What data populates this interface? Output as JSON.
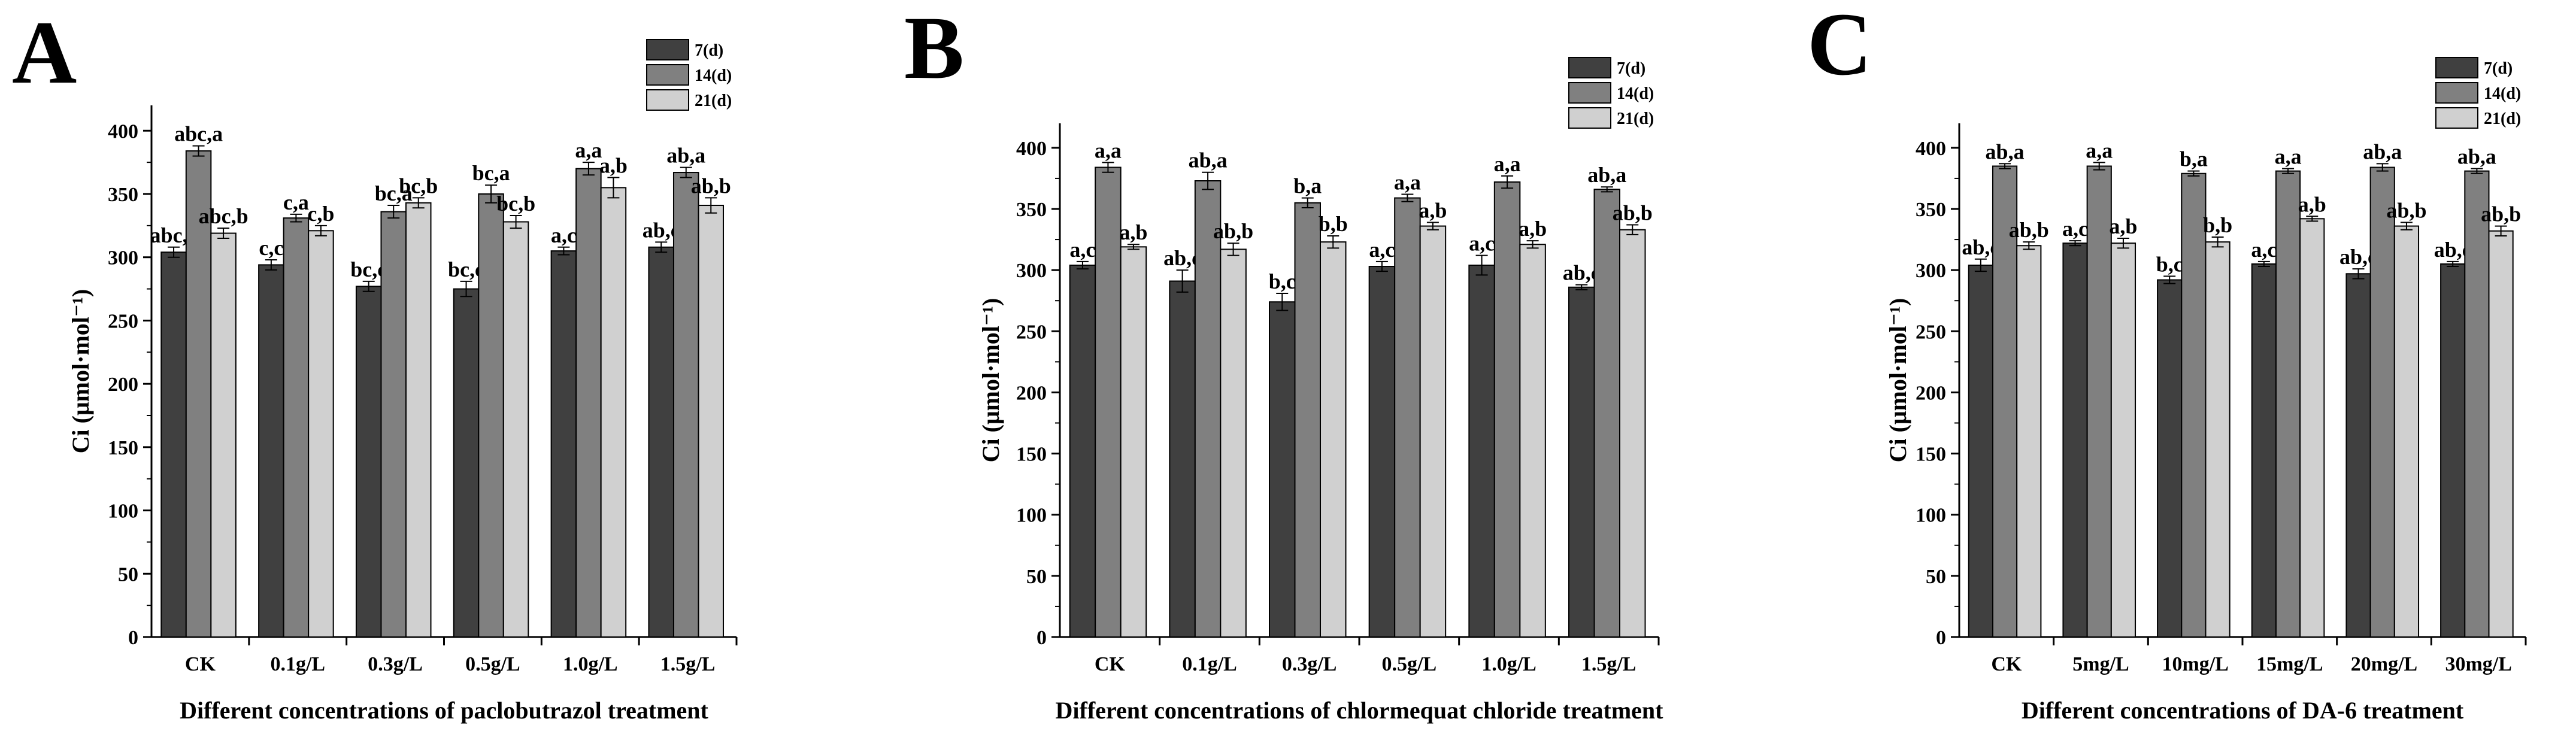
{
  "chart_data": [
    {
      "panel": "A",
      "type": "bar",
      "xlabel": "Different concentrations of paclobutrazol treatment",
      "ylabel": "Ci (μmol·mol⁻¹)",
      "ylim": [
        0,
        420
      ],
      "yticks": [
        0,
        50,
        100,
        150,
        200,
        250,
        300,
        350,
        400
      ],
      "legend_position": "top-right",
      "categories": [
        "CK",
        "0.1g/L",
        "0.3g/L",
        "0.5g/L",
        "1.0g/L",
        "1.5g/L"
      ],
      "series": [
        {
          "name": "7(d)",
          "color": "#404040",
          "values": [
            304,
            294,
            277,
            275,
            305,
            308
          ],
          "errors": [
            4,
            4,
            4,
            6,
            3,
            4
          ],
          "labels": [
            "abc,c",
            "c,c",
            "bc,c",
            "bc,c",
            "a,c",
            "ab,c"
          ]
        },
        {
          "name": "14(d)",
          "color": "#808080",
          "values": [
            384,
            331,
            336,
            350,
            370,
            367
          ],
          "errors": [
            4,
            3,
            5,
            7,
            5,
            4
          ],
          "labels": [
            "abc,a",
            "c,a",
            "bc,a",
            "bc,a",
            "a,a",
            "ab,a"
          ]
        },
        {
          "name": "21(d)",
          "color": "#d0d0d0",
          "values": [
            319,
            321,
            343,
            328,
            355,
            341
          ],
          "errors": [
            4,
            4,
            4,
            5,
            8,
            6
          ],
          "labels": [
            "abc,b",
            "c,b",
            "bc,b",
            "bc,b",
            "a,b",
            "ab,b"
          ]
        }
      ]
    },
    {
      "panel": "B",
      "type": "bar",
      "xlabel": "Different concentrations of chlormequat chloride treatment",
      "ylabel": "Ci (μmol·mol⁻¹)",
      "ylim": [
        0,
        420
      ],
      "yticks": [
        0,
        50,
        100,
        150,
        200,
        250,
        300,
        350,
        400
      ],
      "legend_position": "top-right",
      "categories": [
        "CK",
        "0.1g/L",
        "0.3g/L",
        "0.5g/L",
        "1.0g/L",
        "1.5g/L"
      ],
      "series": [
        {
          "name": "7(d)",
          "color": "#404040",
          "values": [
            304,
            291,
            274,
            303,
            304,
            286
          ],
          "errors": [
            3,
            9,
            7,
            4,
            8,
            2
          ],
          "labels": [
            "a,c",
            "ab,c",
            "b,c",
            "a,c",
            "a,c",
            "ab,c"
          ]
        },
        {
          "name": "14(d)",
          "color": "#808080",
          "values": [
            384,
            373,
            355,
            359,
            372,
            366
          ],
          "errors": [
            4,
            7,
            4,
            3,
            5,
            2
          ],
          "labels": [
            "a,a",
            "ab,a",
            "b,a",
            "a,a",
            "a,a",
            "ab,a"
          ]
        },
        {
          "name": "21(d)",
          "color": "#d0d0d0",
          "values": [
            319,
            317,
            323,
            336,
            321,
            333
          ],
          "errors": [
            2,
            5,
            5,
            3,
            3,
            4
          ],
          "labels": [
            "a,b",
            "ab,b",
            "b,b",
            "a,b",
            "a,b",
            "ab,b"
          ]
        }
      ]
    },
    {
      "panel": "C",
      "type": "bar",
      "xlabel": "Different concentrations of DA-6 treatment",
      "ylabel": "Ci (μmol·mol⁻¹)",
      "ylim": [
        0,
        420
      ],
      "yticks": [
        0,
        50,
        100,
        150,
        200,
        250,
        300,
        350,
        400
      ],
      "legend_position": "top-right",
      "categories": [
        "CK",
        "5mg/L",
        "10mg/L",
        "15mg/L",
        "20mg/L",
        "30mg/L"
      ],
      "series": [
        {
          "name": "7(d)",
          "color": "#404040",
          "values": [
            304,
            322,
            292,
            305,
            297,
            305
          ],
          "errors": [
            5,
            2,
            3,
            2,
            4,
            2
          ],
          "labels": [
            "ab,c",
            "a,c",
            "b,c",
            "a,c",
            "ab,c",
            "ab,c"
          ]
        },
        {
          "name": "14(d)",
          "color": "#808080",
          "values": [
            385,
            385,
            379,
            381,
            384,
            381
          ],
          "errors": [
            2,
            3,
            2,
            2,
            3,
            2
          ],
          "labels": [
            "ab,a",
            "a,a",
            "b,a",
            "a,a",
            "ab,a",
            "ab,a"
          ]
        },
        {
          "name": "21(d)",
          "color": "#d0d0d0",
          "values": [
            320,
            322,
            323,
            342,
            336,
            332
          ],
          "errors": [
            3,
            4,
            4,
            2,
            3,
            4
          ],
          "labels": [
            "ab,b",
            "a,b",
            "b,b",
            "a,b",
            "ab,b",
            "ab,b"
          ]
        }
      ]
    }
  ]
}
